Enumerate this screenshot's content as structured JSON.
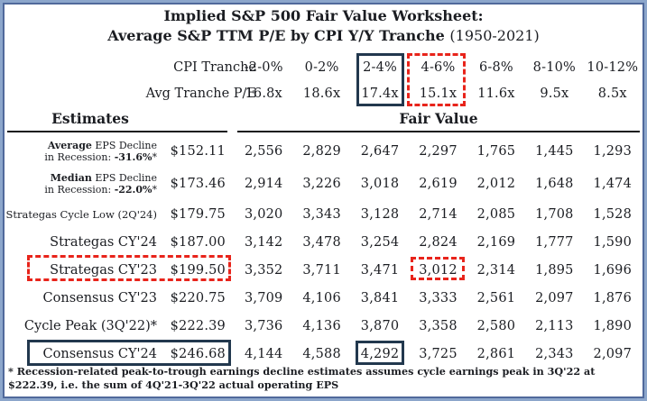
{
  "title": {
    "line1": "Implied S&P 500 Fair Value Worksheet:",
    "line2": "Average S&P TTM P/E by CPI Y/Y Tranche",
    "period": "(1950-2021)"
  },
  "header": {
    "cpi_label": "CPI Tranche",
    "pe_label": "Avg Tranche P/E",
    "tranches": [
      "-2-0%",
      "0-2%",
      "2-4%",
      "4-6%",
      "6-8%",
      "8-10%",
      "10-12%"
    ],
    "pe_values": [
      "16.8x",
      "18.6x",
      "17.4x",
      "15.1x",
      "11.6x",
      "9.5x",
      "8.5x"
    ]
  },
  "sections": {
    "estimates": "Estimates",
    "fair_value": "Fair Value"
  },
  "rows": [
    {
      "label_lines": [
        [
          {
            "text": "Average",
            "bold": true
          },
          {
            "text": " EPS Decline",
            "bold": false
          }
        ],
        [
          {
            "text": "in Recession: ",
            "bold": false
          },
          {
            "text": "-31.6%",
            "bold": true
          },
          {
            "text": "*",
            "bold": false
          }
        ]
      ],
      "estimate": "$152.11",
      "values": [
        "2,556",
        "2,829",
        "2,647",
        "2,297",
        "1,765",
        "1,445",
        "1,293"
      ]
    },
    {
      "label_lines": [
        [
          {
            "text": "Median",
            "bold": true
          },
          {
            "text": " EPS Decline",
            "bold": false
          }
        ],
        [
          {
            "text": "in Recession: ",
            "bold": false
          },
          {
            "text": "-22.0%",
            "bold": true
          },
          {
            "text": "*",
            "bold": false
          }
        ]
      ],
      "estimate": "$173.46",
      "values": [
        "2,914",
        "3,226",
        "3,018",
        "2,619",
        "2,012",
        "1,648",
        "1,474"
      ]
    },
    {
      "label_lines": [
        [
          {
            "text": "Strategas Cycle Low (2Q'24)",
            "bold": false
          }
        ]
      ],
      "estimate": "$179.75",
      "values": [
        "3,020",
        "3,343",
        "3,128",
        "2,714",
        "2,085",
        "1,708",
        "1,528"
      ]
    },
    {
      "label_lines": [
        [
          {
            "text": "Strategas CY'24",
            "bold": false
          }
        ]
      ],
      "estimate": "$187.00",
      "values": [
        "3,142",
        "3,478",
        "3,254",
        "2,824",
        "2,169",
        "1,777",
        "1,590"
      ]
    },
    {
      "label_lines": [
        [
          {
            "text": "Strategas CY'23",
            "bold": false
          }
        ]
      ],
      "estimate": "$199.50",
      "values": [
        "3,352",
        "3,711",
        "3,471",
        "3,012",
        "2,314",
        "1,895",
        "1,696"
      ]
    },
    {
      "label_lines": [
        [
          {
            "text": "Consensus CY'23",
            "bold": false
          }
        ]
      ],
      "estimate": "$220.75",
      "values": [
        "3,709",
        "4,106",
        "3,841",
        "3,333",
        "2,561",
        "2,097",
        "1,876"
      ]
    },
    {
      "label_lines": [
        [
          {
            "text": "Cycle Peak (3Q'22)*",
            "bold": false
          }
        ]
      ],
      "estimate": "$222.39",
      "values": [
        "3,736",
        "4,136",
        "3,870",
        "3,358",
        "2,580",
        "2,113",
        "1,890"
      ]
    },
    {
      "label_lines": [
        [
          {
            "text": "Consensus CY'24",
            "bold": false
          }
        ]
      ],
      "estimate": "$246.68",
      "values": [
        "4,144",
        "4,588",
        "4,292",
        "3,725",
        "2,861",
        "2,343",
        "2,097"
      ]
    }
  ],
  "footnote": "* Recession-related peak-to-trough earnings decline estimates assumes cycle earnings peak in 3Q'22 at $222.39, i.e. the sum of 4Q'21-3Q'22 actual operating EPS",
  "colors": {
    "highlight_solid_box": "#22384e",
    "highlight_dashed_box": "#e8241b",
    "frame_outer": "#8ca6cb",
    "frame_inner": "#50699b"
  },
  "chart_data": {
    "type": "table",
    "title": "Implied S&P 500 Fair Value Worksheet: Average S&P TTM P/E by CPI Y/Y Tranche (1950-2021)",
    "columns": [
      "CPI Tranche",
      "-2-0%",
      "0-2%",
      "2-4%",
      "4-6%",
      "6-8%",
      "8-10%",
      "10-12%"
    ],
    "avg_tranche_pe": [
      16.8,
      18.6,
      17.4,
      15.1,
      11.6,
      9.5,
      8.5
    ],
    "estimates": [
      {
        "label": "Average EPS Decline in Recession: -31.6%*",
        "eps": 152.11,
        "fair_values": [
          2556,
          2829,
          2647,
          2297,
          1765,
          1445,
          1293
        ]
      },
      {
        "label": "Median EPS Decline in Recession: -22.0%*",
        "eps": 173.46,
        "fair_values": [
          2914,
          3226,
          3018,
          2619,
          2012,
          1648,
          1474
        ]
      },
      {
        "label": "Strategas Cycle Low (2Q'24)",
        "eps": 179.75,
        "fair_values": [
          3020,
          3343,
          3128,
          2714,
          2085,
          1708,
          1528
        ]
      },
      {
        "label": "Strategas CY'24",
        "eps": 187.0,
        "fair_values": [
          3142,
          3478,
          3254,
          2824,
          2169,
          1777,
          1590
        ]
      },
      {
        "label": "Strategas CY'23",
        "eps": 199.5,
        "fair_values": [
          3352,
          3711,
          3471,
          3012,
          2314,
          1895,
          1696
        ]
      },
      {
        "label": "Consensus CY'23",
        "eps": 220.75,
        "fair_values": [
          3709,
          4106,
          3841,
          3333,
          2561,
          2097,
          1876
        ]
      },
      {
        "label": "Cycle Peak (3Q'22)*",
        "eps": 222.39,
        "fair_values": [
          3736,
          4136,
          3870,
          3358,
          2580,
          2113,
          1890
        ]
      },
      {
        "label": "Consensus CY'24",
        "eps": 246.68,
        "fair_values": [
          4144,
          4588,
          4292,
          3725,
          2861,
          2343,
          2097
        ]
      }
    ],
    "highlighted": {
      "solid_navy_box_tranche": "2-4% (17.4x)",
      "dashed_red_box_tranche": "4-6% (15.1x)",
      "dashed_red_box_row": "Strategas CY'23 $199.50 with fair value 3,012 in 4-6% tranche",
      "solid_navy_box_row": "Consensus CY'24 $246.68 with fair value 4,292 in 2-4% tranche"
    }
  }
}
